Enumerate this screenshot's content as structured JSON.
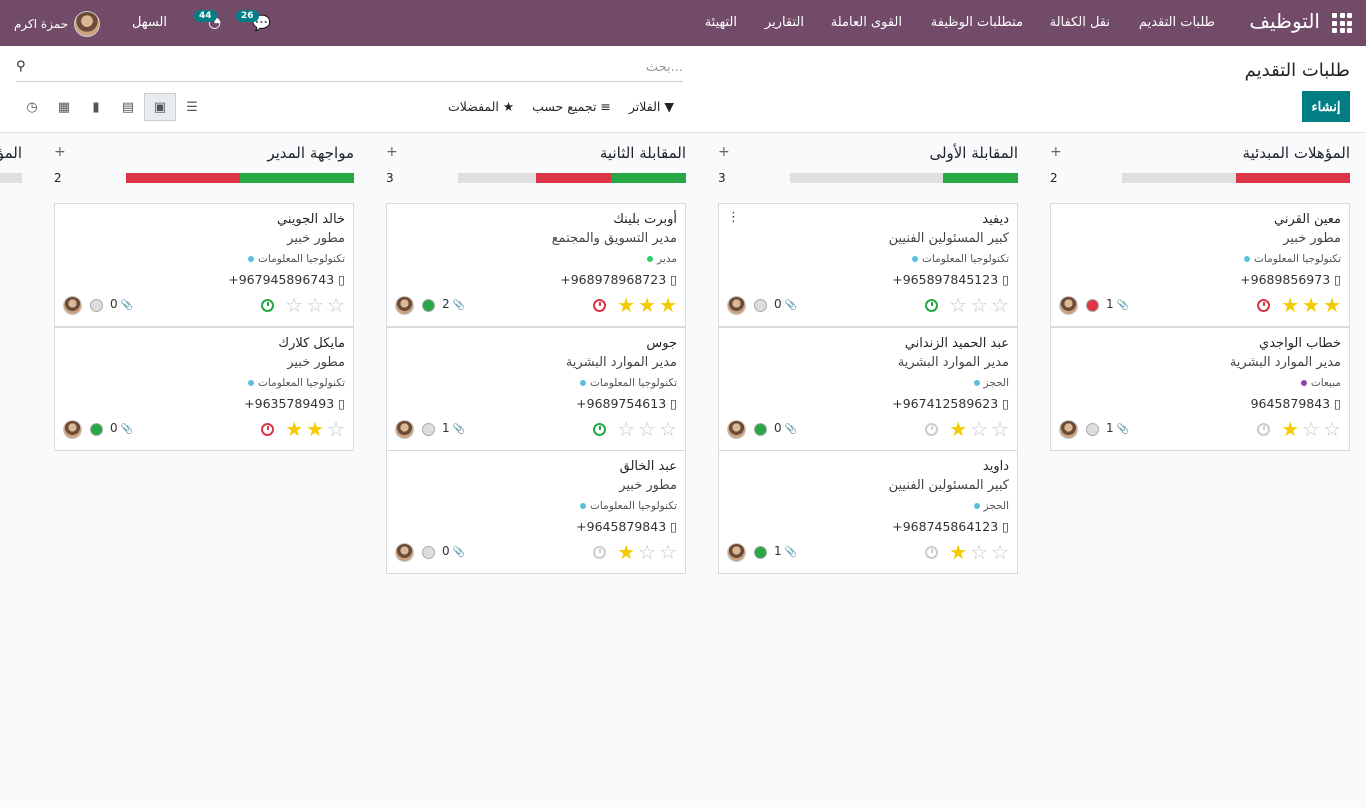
{
  "app": {
    "title": "التوظيف",
    "company": "السهل",
    "user": "حمزة اكرم"
  },
  "nav": {
    "recruitment_app": "طلبات التقديم",
    "transfer": "نقل الكفالة",
    "job_requirements": "متطلبات الوظيفة",
    "workforce": "القوى العاملة",
    "reports": "التقارير",
    "onboarding": "التهيئة"
  },
  "badges": {
    "messages": "26",
    "activities": "44"
  },
  "control_panel": {
    "title": "طلبات التقديم",
    "create_label": "إنشاء",
    "search_placeholder": "بحث...",
    "filters_label": "الفلاتر",
    "groupby_label": "تجميع حسب",
    "favorites_label": "المفضلات"
  },
  "columns": [
    {
      "name": "المؤهلات المبدئية",
      "count": "2",
      "progress": {
        "green": 0,
        "red": 0.5
      },
      "cards": [
        {
          "name": "معين القرني",
          "job": "مطور خبير",
          "tag": "تكنولوجيا المعلومات",
          "tag_color": "#5bc0de",
          "phone": "+9689856973",
          "stars": 3,
          "clock": "#dc3545",
          "attachments": "1",
          "status": "#dc3545"
        },
        {
          "name": "خطاب الواجدي",
          "job": "مدير الموارد البشرية",
          "tag": "مبيعات",
          "tag_color": "#8e44ad",
          "phone": "9645879843",
          "stars": 1,
          "clock": "#cccccc",
          "attachments": "1",
          "status": "#dddddd"
        }
      ]
    },
    {
      "name": "المقابلة الأولى",
      "count": "3",
      "progress": {
        "green": 0.33,
        "red": 0
      },
      "cards": [
        {
          "name": "ديفيد",
          "job": "كبير المسئولين الفنيين",
          "tag": "تكنولوجيا المعلومات",
          "tag_color": "#5bc0de",
          "phone": "+965897845123",
          "stars": 0,
          "clock": "#28a745",
          "attachments": "0",
          "status": "#dddddd"
        },
        {
          "name": "عبد الحميد الزنداني",
          "job": "مدير الموارد البشرية",
          "tag": "الحجز",
          "tag_color": "#5bc0de",
          "phone": "+967412589623",
          "stars": 1,
          "clock": "#cccccc",
          "attachments": "0",
          "status": "#28a745"
        },
        {
          "name": "داويد",
          "job": "كبير المسئولين الفنيين",
          "tag": "الحجز",
          "tag_color": "#5bc0de",
          "phone": "+968745864123",
          "stars": 1,
          "clock": "#cccccc",
          "attachments": "1",
          "status": "#28a745"
        }
      ]
    },
    {
      "name": "المقابلة الثانية",
      "count": "3",
      "progress": {
        "green": 0.33,
        "red": 0.33
      },
      "cards": [
        {
          "name": "أوبرت بلينك",
          "job": "مدير التسويق والمجتمع",
          "tag": "مدير",
          "tag_color": "#2ecc71",
          "phone": "+968978968723",
          "stars": 3,
          "clock": "#dc3545",
          "attachments": "2",
          "status": "#28a745"
        },
        {
          "name": "جوس",
          "job": "مدير الموارد البشرية",
          "tag": "تكنولوجيا المعلومات",
          "tag_color": "#5bc0de",
          "phone": "+9689754613",
          "stars": 0,
          "clock": "#28a745",
          "attachments": "1",
          "status": "#dddddd"
        },
        {
          "name": "عبد الخالق",
          "job": "مطور خبير",
          "tag": "تكنولوجيا المعلومات",
          "tag_color": "#5bc0de",
          "phone": "+9645879843",
          "stars": 1,
          "clock": "#cccccc",
          "attachments": "0",
          "status": "#dddddd"
        }
      ]
    },
    {
      "name": "مواجهة المدير",
      "count": "2",
      "progress": {
        "green": 0.5,
        "red": 0.5
      },
      "cards": [
        {
          "name": "خالد الجويني",
          "job": "مطور خبير",
          "tag": "تكنولوجيا المعلومات",
          "tag_color": "#5bc0de",
          "phone": "+967945896743",
          "stars": 0,
          "clock": "#28a745",
          "attachments": "0",
          "status": "#dddddd"
        },
        {
          "name": "مايكل كلارك",
          "job": "مطور خبير",
          "tag": "تكنولوجيا المعلومات",
          "tag_color": "#5bc0de",
          "phone": "+9635789493",
          "stars": 2,
          "clock": "#dc3545",
          "attachments": "0",
          "status": "#28a745"
        }
      ]
    },
    {
      "name": "المؤهلات المبدئية",
      "count": "",
      "progress": {
        "green": 0,
        "red": 0
      },
      "cards": []
    }
  ]
}
